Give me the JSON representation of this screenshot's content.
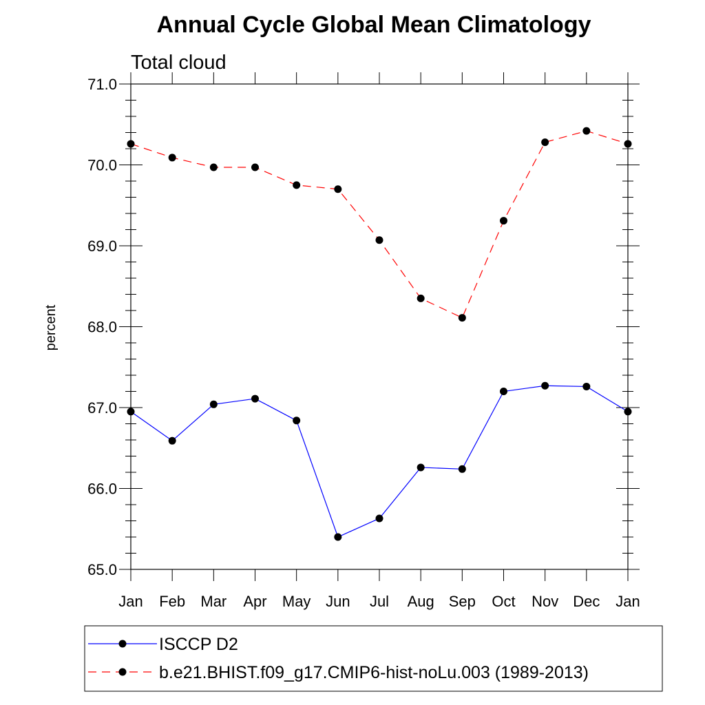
{
  "chart_data": {
    "type": "line",
    "title": "Annual Cycle Global Mean Climatology",
    "subtitle": "Total cloud",
    "xlabel": "",
    "ylabel": "percent",
    "categories": [
      "Jan",
      "Feb",
      "Mar",
      "Apr",
      "May",
      "Jun",
      "Jul",
      "Aug",
      "Sep",
      "Oct",
      "Nov",
      "Dec",
      "Jan"
    ],
    "ylim": [
      65.0,
      71.0
    ],
    "yticks": [
      65.0,
      66.0,
      67.0,
      68.0,
      69.0,
      70.0,
      71.0
    ],
    "ytick_labels": [
      "65.0",
      "66.0",
      "67.0",
      "68.0",
      "69.0",
      "70.0",
      "71.0"
    ],
    "grid": false,
    "legend_position": "bottom",
    "series": [
      {
        "name": "ISCCP D2",
        "color": "#0000ff",
        "dash": "solid",
        "values": [
          66.95,
          66.59,
          67.04,
          67.11,
          66.84,
          65.4,
          65.63,
          66.26,
          66.24,
          67.2,
          67.27,
          67.26,
          66.95
        ]
      },
      {
        "name": "b.e21.BHIST.f09_g17.CMIP6-hist-noLu.003 (1989-2013)",
        "color": "#ff0000",
        "dash": "dashed",
        "values": [
          70.26,
          70.09,
          69.97,
          69.97,
          69.75,
          69.7,
          69.07,
          68.35,
          68.11,
          69.31,
          70.28,
          70.42,
          70.26
        ]
      }
    ]
  }
}
